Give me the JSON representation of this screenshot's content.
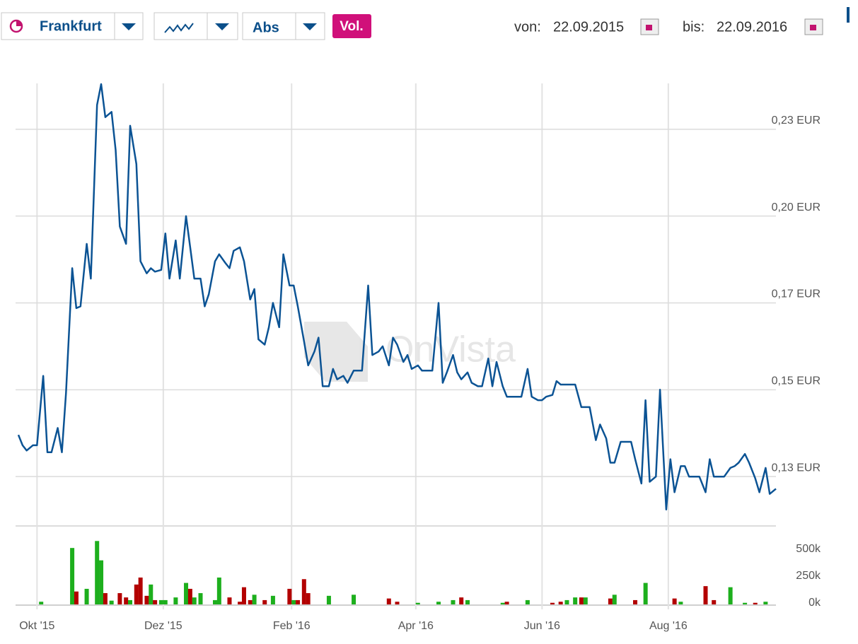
{
  "toolbar": {
    "exchange": "Frankfurt",
    "mode": "Abs",
    "volume_button": "Vol.",
    "from_label": "von:",
    "from_date": "22.09.2015",
    "to_label": "bis:",
    "to_date": "22.09.2016"
  },
  "watermark": "OnVista",
  "chart_data": [
    {
      "type": "line",
      "color": "#0b5394",
      "grid": true,
      "xlim": [
        "2015-09-22",
        "2016-09-22"
      ],
      "xticks": [
        {
          "value": "2015-10-01",
          "label": "Okt '15"
        },
        {
          "value": "2015-12-01",
          "label": "Dez '15"
        },
        {
          "value": "2016-02-01",
          "label": "Feb '16"
        },
        {
          "value": "2016-04-01",
          "label": "Apr '16"
        },
        {
          "value": "2016-06-01",
          "label": "Jun '16"
        },
        {
          "value": "2016-08-01",
          "label": "Aug '16"
        }
      ],
      "ylim": [
        0.1116,
        0.2382
      ],
      "yticks": [
        {
          "value": 0.125,
          "label": "0,13 EUR"
        },
        {
          "value": 0.15,
          "label": "0,15 EUR"
        },
        {
          "value": 0.175,
          "label": "0,17 EUR"
        },
        {
          "value": 0.2,
          "label": "0,20 EUR"
        },
        {
          "value": 0.225,
          "label": "0,23 EUR"
        }
      ],
      "x": [
        "2015-09-22",
        "2015-09-24",
        "2015-09-26",
        "2015-09-29",
        "2015-10-01",
        "2015-10-04",
        "2015-10-06",
        "2015-10-08",
        "2015-10-11",
        "2015-10-13",
        "2015-10-15",
        "2015-10-18",
        "2015-10-20",
        "2015-10-22",
        "2015-10-25",
        "2015-10-27",
        "2015-10-30",
        "2015-11-01",
        "2015-11-03",
        "2015-11-06",
        "2015-11-08",
        "2015-11-10",
        "2015-11-13",
        "2015-11-15",
        "2015-11-18",
        "2015-11-20",
        "2015-11-23",
        "2015-11-25",
        "2015-11-27",
        "2015-11-30",
        "2015-12-02",
        "2015-12-04",
        "2015-12-07",
        "2015-12-09",
        "2015-12-12",
        "2015-12-14",
        "2015-12-16",
        "2015-12-19",
        "2015-12-21",
        "2015-12-23",
        "2015-12-26",
        "2015-12-28",
        "2015-12-31",
        "2016-01-02",
        "2016-01-04",
        "2016-01-07",
        "2016-01-09",
        "2016-01-12",
        "2016-01-14",
        "2016-01-16",
        "2016-01-19",
        "2016-01-21",
        "2016-01-23",
        "2016-01-26",
        "2016-01-28",
        "2016-01-31",
        "2016-02-02",
        "2016-02-04",
        "2016-02-07",
        "2016-02-09",
        "2016-02-12",
        "2016-02-14",
        "2016-02-16",
        "2016-02-19",
        "2016-02-21",
        "2016-02-23",
        "2016-02-26",
        "2016-02-28",
        "2016-03-02",
        "2016-03-04",
        "2016-03-06",
        "2016-03-09",
        "2016-03-11",
        "2016-03-14",
        "2016-03-16",
        "2016-03-19",
        "2016-03-21",
        "2016-03-23",
        "2016-03-26",
        "2016-03-28",
        "2016-03-30",
        "2016-04-02",
        "2016-04-04",
        "2016-04-09",
        "2016-04-12",
        "2016-04-14",
        "2016-04-16",
        "2016-04-19",
        "2016-04-21",
        "2016-04-23",
        "2016-04-26",
        "2016-04-28",
        "2016-05-01",
        "2016-05-03",
        "2016-05-06",
        "2016-05-08",
        "2016-05-10",
        "2016-05-13",
        "2016-05-15",
        "2016-05-22",
        "2016-05-25",
        "2016-05-27",
        "2016-05-30",
        "2016-06-01",
        "2016-06-03",
        "2016-06-06",
        "2016-06-08",
        "2016-06-10",
        "2016-06-17",
        "2016-06-20",
        "2016-06-24",
        "2016-06-27",
        "2016-06-29",
        "2016-07-02",
        "2016-07-04",
        "2016-07-06",
        "2016-07-09",
        "2016-07-14",
        "2016-07-16",
        "2016-07-19",
        "2016-07-21",
        "2016-07-23",
        "2016-07-26",
        "2016-07-28",
        "2016-07-31",
        "2016-08-02",
        "2016-08-04",
        "2016-08-07",
        "2016-08-09",
        "2016-08-11",
        "2016-08-16",
        "2016-08-19",
        "2016-08-21",
        "2016-08-23",
        "2016-08-28",
        "2016-08-31",
        "2016-09-02",
        "2016-09-04",
        "2016-09-07",
        "2016-09-09",
        "2016-09-12",
        "2016-09-14",
        "2016-09-17",
        "2016-09-19",
        "2016-09-22"
      ],
      "values": [
        0.137,
        0.134,
        0.1325,
        0.134,
        0.134,
        0.154,
        0.132,
        0.132,
        0.139,
        0.132,
        0.149,
        0.185,
        0.1735,
        0.174,
        0.192,
        0.182,
        0.232,
        0.238,
        0.2285,
        0.23,
        0.219,
        0.197,
        0.192,
        0.226,
        0.215,
        0.187,
        0.1835,
        0.185,
        0.184,
        0.1845,
        0.195,
        0.182,
        0.193,
        0.182,
        0.2,
        0.191,
        0.182,
        0.182,
        0.174,
        0.1775,
        0.187,
        0.189,
        0.1865,
        0.185,
        0.19,
        0.191,
        0.187,
        0.176,
        0.179,
        0.1645,
        0.163,
        0.168,
        0.175,
        0.168,
        0.189,
        0.18,
        0.18,
        0.174,
        0.164,
        0.157,
        0.161,
        0.165,
        0.151,
        0.151,
        0.156,
        0.153,
        0.154,
        0.152,
        0.1555,
        0.1555,
        0.1555,
        0.18,
        0.16,
        0.161,
        0.1625,
        0.157,
        0.165,
        0.163,
        0.158,
        0.16,
        0.156,
        0.157,
        0.1555,
        0.1555,
        0.175,
        0.152,
        0.155,
        0.16,
        0.155,
        0.153,
        0.155,
        0.152,
        0.151,
        0.151,
        0.159,
        0.151,
        0.158,
        0.151,
        0.148,
        0.148,
        0.156,
        0.148,
        0.147,
        0.147,
        0.148,
        0.1485,
        0.1525,
        0.1515,
        0.1515,
        0.145,
        0.145,
        0.1355,
        0.14,
        0.136,
        0.129,
        0.129,
        0.135,
        0.135,
        0.13,
        0.123,
        0.147,
        0.1235,
        0.125,
        0.15,
        0.1155,
        0.13,
        0.1205,
        0.128,
        0.128,
        0.125,
        0.125,
        0.1205,
        0.13,
        0.125,
        0.125,
        0.1275,
        0.128,
        0.129,
        0.1315,
        0.129,
        0.1245,
        0.1205,
        0.1275,
        0.12,
        0.1215
      ]
    },
    {
      "type": "bar",
      "grid": false,
      "xlim": [
        "2015-09-22",
        "2016-09-22"
      ],
      "ylim": [
        0,
        730000
      ],
      "yticks": [
        {
          "value": 0,
          "label": "0k"
        },
        {
          "value": 250000,
          "label": "250k"
        },
        {
          "value": 500000,
          "label": "500k"
        }
      ],
      "x": [
        "2015-10-03",
        "2015-10-18",
        "2015-10-20",
        "2015-10-25",
        "2015-10-30",
        "2015-11-01",
        "2015-11-03",
        "2015-11-06",
        "2015-11-10",
        "2015-11-13",
        "2015-11-15",
        "2015-11-18",
        "2015-11-20",
        "2015-11-23",
        "2015-11-25",
        "2015-11-27",
        "2015-11-30",
        "2015-12-02",
        "2015-12-07",
        "2015-12-12",
        "2015-12-14",
        "2015-12-16",
        "2015-12-19",
        "2015-12-26",
        "2015-12-28",
        "2016-01-02",
        "2016-01-07",
        "2016-01-09",
        "2016-01-12",
        "2016-01-14",
        "2016-01-19",
        "2016-01-23",
        "2016-01-31",
        "2016-02-02",
        "2016-02-04",
        "2016-02-07",
        "2016-02-09",
        "2016-02-19",
        "2016-03-02",
        "2016-03-19",
        "2016-03-23",
        "2016-04-02",
        "2016-04-12",
        "2016-04-19",
        "2016-04-23",
        "2016-04-26",
        "2016-05-13",
        "2016-05-15",
        "2016-05-25",
        "2016-06-06",
        "2016-06-10",
        "2016-06-13",
        "2016-06-17",
        "2016-06-20",
        "2016-06-22",
        "2016-07-04",
        "2016-07-06",
        "2016-07-16",
        "2016-07-21",
        "2016-08-04",
        "2016-08-07",
        "2016-08-19",
        "2016-08-23",
        "2016-08-31",
        "2016-09-07",
        "2016-09-12",
        "2016-09-17"
      ],
      "values": [
        25000,
        525000,
        120000,
        145000,
        590000,
        410000,
        105000,
        35000,
        105000,
        65000,
        40000,
        185000,
        250000,
        80000,
        185000,
        40000,
        40000,
        40000,
        65000,
        200000,
        145000,
        65000,
        105000,
        40000,
        250000,
        65000,
        25000,
        160000,
        40000,
        90000,
        40000,
        80000,
        145000,
        40000,
        40000,
        235000,
        105000,
        80000,
        90000,
        55000,
        25000,
        15000,
        25000,
        40000,
        65000,
        40000,
        15000,
        25000,
        40000,
        15000,
        25000,
        40000,
        65000,
        65000,
        65000,
        55000,
        90000,
        40000,
        200000,
        55000,
        25000,
        170000,
        40000,
        160000,
        15000,
        15000,
        25000
      ],
      "colors": [
        "#1daf1d",
        "#1daf1d",
        "#b30000",
        "#1daf1d",
        "#1daf1d",
        "#1daf1d",
        "#b30000",
        "#1daf1d",
        "#b30000",
        "#b30000",
        "#1daf1d",
        "#b30000",
        "#b30000",
        "#b30000",
        "#1daf1d",
        "#b30000",
        "#1daf1d",
        "#1daf1d",
        "#1daf1d",
        "#1daf1d",
        "#b30000",
        "#1daf1d",
        "#1daf1d",
        "#1daf1d",
        "#1daf1d",
        "#b30000",
        "#b30000",
        "#b30000",
        "#b30000",
        "#1daf1d",
        "#b30000",
        "#1daf1d",
        "#b30000",
        "#1daf1d",
        "#b30000",
        "#b30000",
        "#b30000",
        "#1daf1d",
        "#1daf1d",
        "#b30000",
        "#b30000",
        "#1daf1d",
        "#1daf1d",
        "#1daf1d",
        "#b30000",
        "#1daf1d",
        "#1daf1d",
        "#b30000",
        "#1daf1d",
        "#b30000",
        "#b30000",
        "#1daf1d",
        "#1daf1d",
        "#b30000",
        "#1daf1d",
        "#b30000",
        "#1daf1d",
        "#b30000",
        "#1daf1d",
        "#b30000",
        "#1daf1d",
        "#b30000",
        "#b30000",
        "#1daf1d",
        "#1daf1d",
        "#b30000",
        "#1daf1d"
      ]
    }
  ]
}
